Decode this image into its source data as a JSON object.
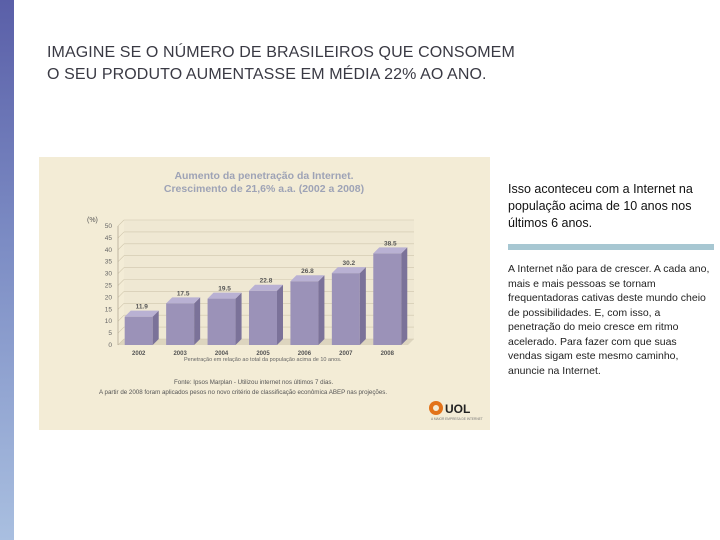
{
  "page": {
    "headline_line1": "IMAGINE SE O NÚMERO DE BRASILEIROS QUE CONSOMEM",
    "headline_line2": "O SEU PRODUTO AUMENTASSE EM MÉDIA 22% AO ANO.",
    "accent_color": "#5a5fa8"
  },
  "chart_data": {
    "type": "bar",
    "title": "Aumento da penetração da Internet.",
    "subtitle": "Crescimento de 21,6% a.a. (2002 a 2008)",
    "ylabel": "(%)",
    "xlabel": "",
    "categories": [
      "2002",
      "2003",
      "2004",
      "2005",
      "2006",
      "2007",
      "2008"
    ],
    "values": [
      11.9,
      17.5,
      19.5,
      22.8,
      26.8,
      30.2,
      38.5
    ],
    "value_labels": [
      "11.9",
      "17.5",
      "19.5",
      "22.8",
      "26.8",
      "30.2",
      "38.5"
    ],
    "ylim": [
      0,
      50
    ],
    "yticks": [
      0,
      5,
      10,
      15,
      20,
      25,
      30,
      35,
      40,
      45,
      50
    ],
    "grid": true,
    "bar_color": "#9b92b8",
    "note": "Penetração em relação ao total da população acima de 10 anos.",
    "source_line1": "Fonte: Ipsos Marplan - Utilizou internet nos últimos 7 dias.",
    "source_line2": "A partir de 2008 foram aplicados pesos no novo critério de classificação econômica ABEP nas projeções.",
    "logo_text": "UOL",
    "logo_subtext": "A MAIOR EMPRESA DE INTERNET"
  },
  "info": {
    "lead": "Isso aconteceu com a Internet na população acima de 10 anos nos últimos 6 anos.",
    "body": "A Internet não para de crescer. A cada ano, mais e mais pessoas se tornam frequentadoras cativas deste mundo cheio de possibilidades. E, com isso, a penetração do meio cresce em ritmo acelerado. Para fazer com que suas vendas sigam este mesmo caminho, anuncie na Internet."
  }
}
